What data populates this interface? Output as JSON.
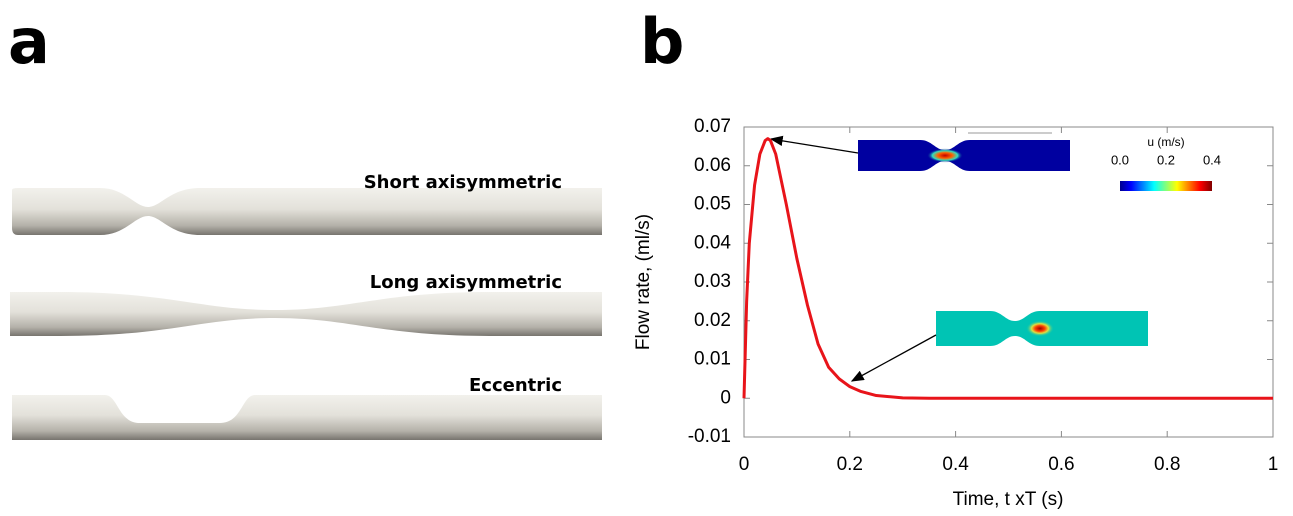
{
  "panel_a": {
    "label": "a",
    "tubes": [
      "Short axisymmetric",
      "Long axisymmetric",
      "Eccentric"
    ]
  },
  "panel_b_label": "b",
  "chart_data": {
    "type": "line",
    "xlabel": "Time, t xT (s)",
    "ylabel": "Flow rate, (ml/s)",
    "x": [
      0,
      0.005,
      0.01,
      0.02,
      0.03,
      0.04,
      0.045,
      0.05,
      0.06,
      0.08,
      0.1,
      0.12,
      0.14,
      0.16,
      0.18,
      0.2,
      0.22,
      0.25,
      0.3,
      0.35,
      0.4,
      0.6,
      0.8,
      1
    ],
    "values": [
      0,
      0.025,
      0.04,
      0.055,
      0.063,
      0.0665,
      0.067,
      0.0665,
      0.063,
      0.05,
      0.036,
      0.024,
      0.014,
      0.008,
      0.005,
      0.003,
      0.0018,
      0.0007,
      0.0001,
      0,
      0,
      0,
      0,
      0
    ],
    "color": "#e8141a",
    "xlim": [
      0,
      1
    ],
    "xticks": [
      0,
      0.2,
      0.4,
      0.6,
      0.8,
      1
    ],
    "ylim": [
      -0.01,
      0.07
    ],
    "yticks": [
      -0.01,
      0,
      0.01,
      0.02,
      0.03,
      0.04,
      0.05,
      0.06,
      0.07
    ],
    "colorbar": {
      "title": "u (m/s)",
      "lim": [
        0,
        0.4
      ],
      "ticks": [
        {
          "value": 0,
          "label": "0.0"
        },
        0.2,
        0.4
      ]
    }
  }
}
